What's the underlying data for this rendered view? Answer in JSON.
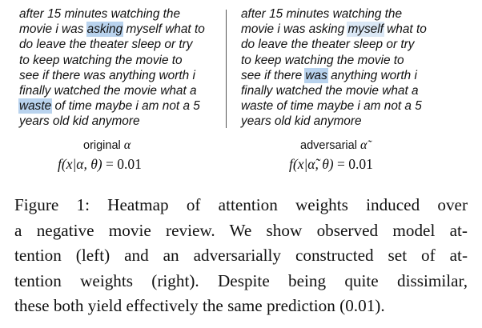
{
  "review_left": {
    "lines": [
      [
        "after 15 minutes watching the"
      ],
      [
        "movie i was ",
        {
          "hl": "strong",
          "text": "asking"
        },
        " myself what to"
      ],
      [
        "do leave the theater sleep or try"
      ],
      [
        "to keep watching the movie to"
      ],
      [
        "see if there was anything worth i"
      ],
      [
        "finally watched the movie what a"
      ],
      [
        {
          "hl": "strong",
          "text": "waste"
        },
        " of time maybe i am not a 5"
      ],
      [
        "years old kid anymore"
      ]
    ]
  },
  "review_right": {
    "lines": [
      [
        "after 15 minutes watching the"
      ],
      [
        "movie i was asking ",
        {
          "hl": "light",
          "text": "myself"
        },
        " what to"
      ],
      [
        "do leave the theater sleep or try"
      ],
      [
        "to keep watching the movie to"
      ],
      [
        "see if there ",
        {
          "hl": "strong",
          "text": "was"
        },
        " anything worth i"
      ],
      [
        "finally watched the movie what a"
      ],
      [
        "waste of time maybe i am not a 5"
      ],
      [
        "years old kid anymore"
      ]
    ]
  },
  "label_left": {
    "text": "original",
    "symbol": "α"
  },
  "label_right": {
    "text": "adversarial",
    "symbol": "α̃"
  },
  "formula_left": {
    "lhs": "f(x|α, θ)",
    "rhs": "= 0.01"
  },
  "formula_right": {
    "lhs": "f(x|α̃, θ)",
    "rhs": "= 0.01"
  },
  "caption": {
    "lines": [
      "Figure 1: Heatmap of attention weights induced over",
      "a negative movie review. We show observed model at-",
      "tention (left) and an adversarially constructed set of at-",
      "tention weights (right). Despite being quite dissimilar,",
      "these both yield effectively the same prediction (0.01)."
    ]
  },
  "colors": {
    "highlight_strong": "#b9d3ee",
    "highlight_light": "#dbe8f6"
  }
}
